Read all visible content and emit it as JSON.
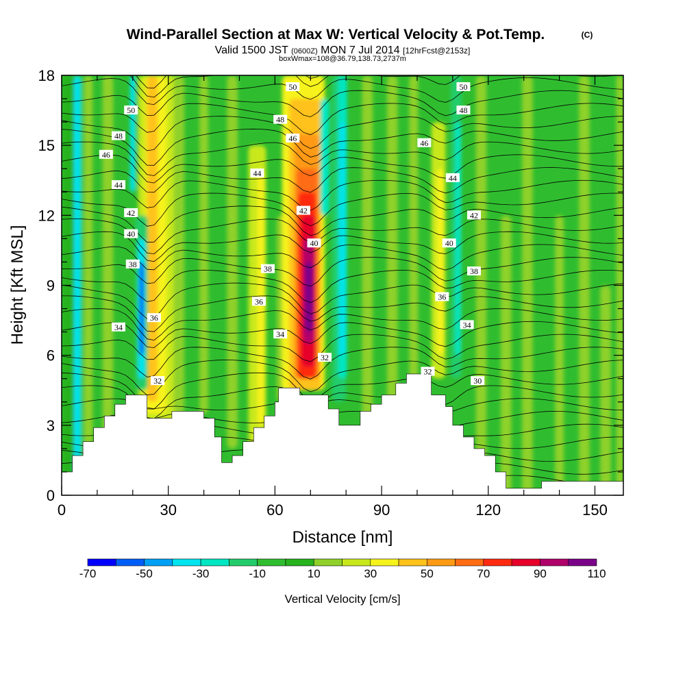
{
  "chart_data": {
    "type": "heatmap",
    "title": "Wind-Parallel Section at Max W: Vertical Velocity & Pot.Temp.",
    "title_mark": "(C)",
    "subtitle": {
      "prefix": "Valid 1500 JST",
      "zulu": "(0600Z)",
      "day": "MON 7 Jul 2014",
      "forecast": "[12hrFcst@2153z]"
    },
    "box_info": "boxWmax=108@36.79,138.73,2737m",
    "xlabel": "Distance [nm]",
    "ylabel": "Height [Kft MSL]",
    "xlim": [
      0,
      158
    ],
    "ylim": [
      0,
      18
    ],
    "x_ticks": [
      0,
      30,
      60,
      90,
      120,
      150
    ],
    "y_ticks": [
      0,
      3,
      6,
      9,
      12,
      15,
      18
    ],
    "colorbar": {
      "label": "Vertical Velocity [cm/s]",
      "tick_labels": [
        "-70",
        "-50",
        "-30",
        "-10",
        "10",
        "30",
        "50",
        "70",
        "90",
        "110"
      ],
      "levels": [
        -70,
        -60,
        -50,
        -40,
        -30,
        -20,
        -10,
        0,
        10,
        20,
        30,
        40,
        50,
        60,
        70,
        80,
        90,
        100,
        110
      ],
      "colors": [
        "#0000ff",
        "#005ef7",
        "#00a0f5",
        "#00e4f0",
        "#00e6c2",
        "#22cc6a",
        "#2fbd2f",
        "#27b21e",
        "#8fd12a",
        "#c8e81c",
        "#f6f31c",
        "#ffc21a",
        "#ff9a14",
        "#ff6c12",
        "#ff2a10",
        "#e6002a",
        "#b0006a",
        "#7a0088"
      ]
    },
    "contour_labels": [
      {
        "text": "50",
        "x": 19.5,
        "y": 16.5
      },
      {
        "text": "48",
        "x": 16,
        "y": 15.4
      },
      {
        "text": "46",
        "x": 12.5,
        "y": 14.6
      },
      {
        "text": "44",
        "x": 16,
        "y": 13.3
      },
      {
        "text": "42",
        "x": 19.5,
        "y": 12.1
      },
      {
        "text": "40",
        "x": 19.5,
        "y": 11.2
      },
      {
        "text": "38",
        "x": 20,
        "y": 9.9
      },
      {
        "text": "36",
        "x": 26,
        "y": 7.6
      },
      {
        "text": "34",
        "x": 16,
        "y": 7.2
      },
      {
        "text": "32",
        "x": 27,
        "y": 4.9
      },
      {
        "text": "50",
        "x": 65,
        "y": 17.5
      },
      {
        "text": "48",
        "x": 61.5,
        "y": 16.1
      },
      {
        "text": "46",
        "x": 65,
        "y": 15.3
      },
      {
        "text": "44",
        "x": 55,
        "y": 13.8
      },
      {
        "text": "42",
        "x": 68,
        "y": 12.2
      },
      {
        "text": "40",
        "x": 71,
        "y": 10.8
      },
      {
        "text": "38",
        "x": 58,
        "y": 9.7
      },
      {
        "text": "36",
        "x": 55.5,
        "y": 8.3
      },
      {
        "text": "34",
        "x": 61.5,
        "y": 6.9
      },
      {
        "text": "32",
        "x": 74,
        "y": 5.9
      },
      {
        "text": "50",
        "x": 113,
        "y": 17.5
      },
      {
        "text": "48",
        "x": 113,
        "y": 16.5
      },
      {
        "text": "46",
        "x": 102,
        "y": 15.1
      },
      {
        "text": "44",
        "x": 110,
        "y": 13.6
      },
      {
        "text": "42",
        "x": 116,
        "y": 12.0
      },
      {
        "text": "40",
        "x": 109,
        "y": 10.8
      },
      {
        "text": "38",
        "x": 116,
        "y": 9.6
      },
      {
        "text": "36",
        "x": 107,
        "y": 8.5
      },
      {
        "text": "34",
        "x": 114,
        "y": 7.3
      },
      {
        "text": "32",
        "x": 103,
        "y": 5.3
      },
      {
        "text": "30",
        "x": 117,
        "y": 4.9
      }
    ]
  }
}
